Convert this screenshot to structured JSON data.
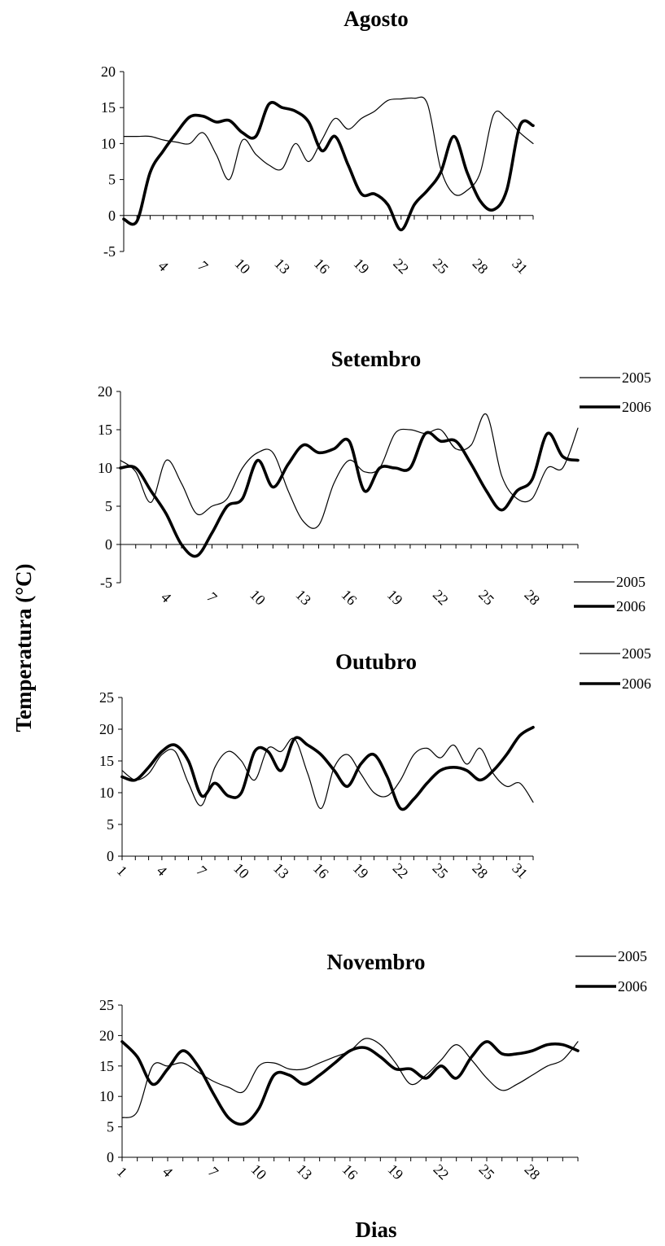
{
  "figure": {
    "ylabel": "Temperatura (°C)",
    "xlabel": "Dias"
  },
  "chart_data": [
    {
      "type": "line",
      "title": "Agosto",
      "xlabel": "",
      "ylabel": "",
      "xlim": [
        1,
        32
      ],
      "ylim": [
        -5,
        20
      ],
      "yticks": [
        -5,
        0,
        5,
        10,
        15,
        20
      ],
      "xticks": [
        4,
        7,
        10,
        13,
        16,
        19,
        22,
        25,
        28,
        31
      ],
      "legend_placement": "top-right",
      "grid": false,
      "series": [
        {
          "name": "2005",
          "style": "thin",
          "x": [
            1,
            2,
            3,
            4,
            5,
            6,
            7,
            8,
            9,
            10,
            11,
            12,
            13,
            14,
            15,
            16,
            17,
            18,
            19,
            20,
            21,
            22,
            23,
            24,
            25,
            26,
            27,
            28,
            29,
            30,
            31,
            32
          ],
          "values": [
            11,
            11,
            11,
            10.5,
            10.2,
            10,
            11.5,
            8.5,
            5,
            10.5,
            8.5,
            7,
            6.5,
            10,
            7.5,
            10.5,
            13.5,
            12,
            13.5,
            14.5,
            16,
            16.2,
            16.3,
            15.5,
            6.5,
            3,
            3.5,
            6,
            14,
            13.5,
            11.5,
            10
          ]
        },
        {
          "name": "2006",
          "style": "thick",
          "x": [
            1,
            2,
            3,
            4,
            5,
            6,
            7,
            8,
            9,
            10,
            11,
            12,
            13,
            14,
            15,
            16,
            17,
            18,
            19,
            20,
            21,
            22,
            23,
            24,
            25,
            26,
            27,
            28,
            29,
            30,
            31,
            32
          ],
          "values": [
            -0.5,
            -0.8,
            6,
            9,
            11.5,
            13.7,
            13.8,
            13,
            13.2,
            11.5,
            11,
            15.5,
            15,
            14.5,
            13,
            9,
            11,
            7,
            3,
            3,
            1.5,
            -2,
            1.5,
            3.5,
            6,
            11,
            6,
            2,
            0.8,
            3.5,
            12.5,
            12.5
          ]
        }
      ]
    },
    {
      "type": "line",
      "title": "Setembro",
      "xlabel": "",
      "ylabel": "",
      "xlim": [
        1,
        31
      ],
      "ylim": [
        -5,
        20
      ],
      "yticks": [
        -5,
        0,
        5,
        10,
        15,
        20
      ],
      "xticks": [
        4,
        7,
        10,
        13,
        16,
        19,
        22,
        25,
        28
      ],
      "legend_placement": "top-right",
      "grid": false,
      "series": [
        {
          "name": "2005",
          "style": "thin",
          "x": [
            1,
            2,
            3,
            4,
            5,
            6,
            7,
            8,
            9,
            10,
            11,
            12,
            13,
            14,
            15,
            16,
            17,
            18,
            19,
            20,
            21,
            22,
            23,
            24,
            25,
            26,
            27,
            28,
            29,
            30,
            31
          ],
          "values": [
            11,
            9.5,
            5.5,
            11,
            8,
            4,
            5,
            6,
            10,
            12,
            12,
            7,
            3,
            2.5,
            8,
            11,
            9.5,
            10,
            14.5,
            15,
            14.5,
            15,
            12.5,
            13,
            17,
            9,
            6,
            6,
            10,
            10,
            15.2
          ]
        },
        {
          "name": "2006",
          "style": "thick",
          "x": [
            1,
            2,
            3,
            4,
            5,
            6,
            7,
            8,
            9,
            10,
            11,
            12,
            13,
            14,
            15,
            16,
            17,
            18,
            19,
            20,
            21,
            22,
            23,
            24,
            25,
            26,
            27,
            28,
            29,
            30,
            31
          ],
          "values": [
            10,
            10,
            7,
            4,
            0,
            -1.5,
            1.5,
            5,
            6,
            11,
            7.5,
            10.5,
            13,
            12,
            12.5,
            13.5,
            7,
            10,
            10,
            10,
            14.5,
            13.5,
            13.5,
            10.5,
            7,
            4.5,
            7,
            8.5,
            14.5,
            11.5,
            11
          ]
        }
      ]
    },
    {
      "type": "line",
      "title": "Outubro",
      "xlabel": "",
      "ylabel": "",
      "xlim": [
        1,
        32
      ],
      "ylim": [
        0,
        25
      ],
      "yticks": [
        0,
        5,
        10,
        15,
        20,
        25
      ],
      "xticks": [
        1,
        4,
        7,
        10,
        13,
        16,
        19,
        22,
        25,
        28,
        31
      ],
      "legend_placement": "top-right",
      "grid": false,
      "series": [
        {
          "name": "2005",
          "style": "thin",
          "x": [
            1,
            2,
            3,
            4,
            5,
            6,
            7,
            8,
            9,
            10,
            11,
            12,
            13,
            14,
            15,
            16,
            17,
            18,
            19,
            20,
            21,
            22,
            23,
            24,
            25,
            26,
            27,
            28,
            29,
            30,
            31,
            32
          ],
          "values": [
            13.5,
            12,
            13,
            16,
            16.5,
            11.5,
            8,
            14,
            16.5,
            15,
            12,
            17,
            16.5,
            18.5,
            13,
            7.5,
            14,
            16,
            13,
            10,
            9.5,
            12,
            16,
            17,
            15.5,
            17.5,
            14.5,
            17,
            13,
            11,
            11.5,
            8.5
          ]
        },
        {
          "name": "2006",
          "style": "thick",
          "x": [
            1,
            2,
            3,
            4,
            5,
            6,
            7,
            8,
            9,
            10,
            11,
            12,
            13,
            14,
            15,
            16,
            17,
            18,
            19,
            20,
            21,
            22,
            23,
            24,
            25,
            26,
            27,
            28,
            29,
            30,
            31,
            32
          ],
          "values": [
            12.5,
            12,
            14,
            16.5,
            17.5,
            15,
            9.5,
            11.5,
            9.5,
            10,
            16.5,
            16.5,
            13.5,
            18.5,
            17.5,
            16,
            13.5,
            11,
            14.5,
            16,
            12.5,
            7.5,
            9,
            11.5,
            13.5,
            14,
            13.5,
            12,
            13.5,
            16,
            19,
            20.3
          ]
        }
      ]
    },
    {
      "type": "line",
      "title": "Novembro",
      "xlabel": "",
      "ylabel": "",
      "xlim": [
        1,
        31
      ],
      "ylim": [
        0,
        25
      ],
      "yticks": [
        0,
        5,
        10,
        15,
        20,
        25
      ],
      "xticks": [
        1,
        4,
        7,
        10,
        13,
        16,
        19,
        22,
        25,
        28
      ],
      "legend_placement": "top-right",
      "grid": false,
      "series": [
        {
          "name": "2005",
          "style": "thin",
          "x": [
            1,
            2,
            3,
            4,
            5,
            6,
            7,
            8,
            9,
            10,
            11,
            12,
            13,
            14,
            15,
            16,
            17,
            18,
            19,
            20,
            21,
            22,
            23,
            24,
            25,
            26,
            27,
            28,
            29,
            30,
            31
          ],
          "values": [
            6.5,
            7.5,
            15,
            15,
            15.5,
            14,
            12.5,
            11.5,
            10.8,
            15,
            15.5,
            14.5,
            14.5,
            15.5,
            16.5,
            17.5,
            19.5,
            18.5,
            15.5,
            12,
            13.5,
            16,
            18.5,
            16,
            13,
            11,
            12,
            13.5,
            15,
            16,
            19
          ]
        },
        {
          "name": "2006",
          "style": "thick",
          "x": [
            1,
            2,
            3,
            4,
            5,
            6,
            7,
            8,
            9,
            10,
            11,
            12,
            13,
            14,
            15,
            16,
            17,
            18,
            19,
            20,
            21,
            22,
            23,
            24,
            25,
            26,
            27,
            28,
            29,
            30,
            31
          ],
          "values": [
            19,
            16.5,
            12,
            14.5,
            17.5,
            15,
            10.5,
            6.5,
            5.5,
            8,
            13.5,
            13.5,
            12,
            13.5,
            15.5,
            17.5,
            18,
            16.5,
            14.5,
            14.5,
            13,
            15,
            13,
            16.5,
            19,
            17,
            17,
            17.5,
            18.5,
            18.5,
            17.5
          ]
        }
      ]
    }
  ]
}
